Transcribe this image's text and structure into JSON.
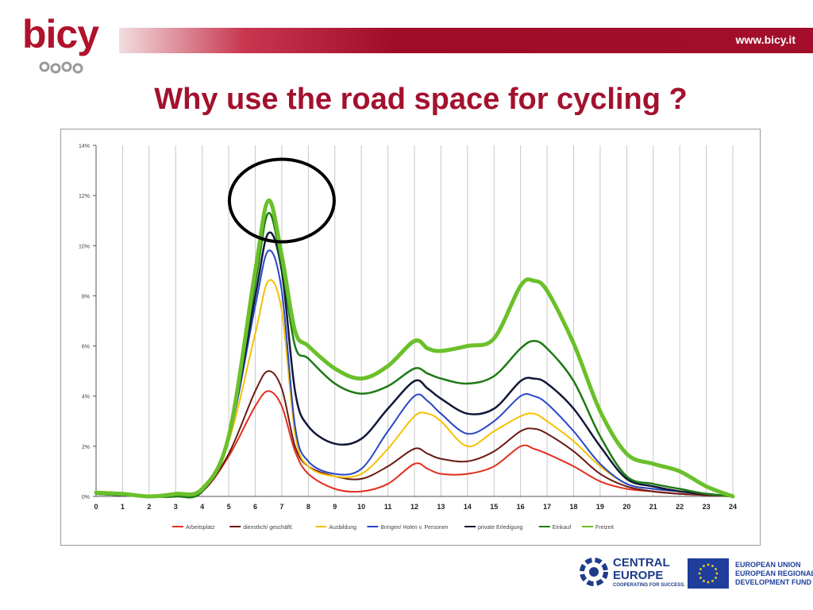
{
  "header": {
    "logo_text": "bicy",
    "url": "www.bicy.it",
    "title": "Why use the road space for cycling ?"
  },
  "colors": {
    "brand_red": "#a3112e",
    "banner_dark": "#9e0c26",
    "eu_blue": "#1f3e9c",
    "central_blue": "#1e3c8a"
  },
  "chart_data": {
    "type": "line",
    "title": "",
    "xlabel": "",
    "ylabel": "",
    "x": [
      0,
      1,
      2,
      3,
      4,
      5,
      6,
      6.5,
      7,
      7.5,
      8,
      9,
      10,
      11,
      12,
      12.5,
      13,
      14,
      15,
      16,
      16.5,
      17,
      18,
      19,
      20,
      21,
      22,
      23,
      24
    ],
    "xticks": [
      "0",
      "1",
      "2",
      "3",
      "4",
      "5",
      "6",
      "7",
      "8",
      "9",
      "10",
      "11",
      "12",
      "13",
      "14",
      "15",
      "16",
      "17",
      "18",
      "19",
      "20",
      "21",
      "22",
      "23",
      "24"
    ],
    "yticks": [
      "0%",
      "2%",
      "4%",
      "6%",
      "8%",
      "10%",
      "12%",
      "14%"
    ],
    "ylim": [
      0,
      14
    ],
    "xlim": [
      0,
      24
    ],
    "grid": "vertical",
    "legend_position": "bottom",
    "series": [
      {
        "name": "Arbeitsplatz",
        "color": "#e03020",
        "width": 2,
        "values": [
          0.1,
          0.05,
          0,
          0,
          0.2,
          1.6,
          3.6,
          4.2,
          3.6,
          1.8,
          0.9,
          0.3,
          0.2,
          0.5,
          1.3,
          1.1,
          0.9,
          0.9,
          1.2,
          2.0,
          1.9,
          1.7,
          1.2,
          0.6,
          0.3,
          0.2,
          0.1,
          0.05,
          0
        ]
      },
      {
        "name": "dienstlich/ geschäftl.",
        "color": "#6a1a12",
        "width": 2,
        "values": [
          0.1,
          0.05,
          0,
          0,
          0.2,
          1.7,
          4.2,
          5.0,
          4.3,
          2.0,
          1.2,
          0.8,
          0.7,
          1.2,
          1.9,
          1.7,
          1.5,
          1.4,
          1.8,
          2.6,
          2.7,
          2.5,
          1.8,
          0.9,
          0.4,
          0.2,
          0.1,
          0.05,
          0
        ]
      },
      {
        "name": "Ausbildung",
        "color": "#f5c000",
        "width": 2,
        "values": [
          0.1,
          0.05,
          0,
          0,
          0.2,
          2.2,
          6.5,
          8.6,
          7.4,
          2.5,
          1.2,
          0.8,
          0.9,
          1.9,
          3.2,
          3.3,
          3.0,
          2.0,
          2.6,
          3.2,
          3.3,
          3.0,
          2.2,
          1.2,
          0.5,
          0.3,
          0.2,
          0.1,
          0
        ]
      },
      {
        "name": "Bringen/ Holen v. Personen",
        "color": "#2846c8",
        "width": 2,
        "values": [
          0.1,
          0.05,
          0,
          0,
          0.2,
          2.3,
          7.6,
          9.8,
          8.2,
          2.8,
          1.4,
          0.9,
          1.1,
          2.6,
          4.0,
          3.8,
          3.3,
          2.5,
          3.0,
          4.0,
          4.0,
          3.7,
          2.6,
          1.3,
          0.5,
          0.3,
          0.2,
          0.1,
          0
        ]
      },
      {
        "name": "private Erledigung",
        "color": "#111838",
        "width": 2.5,
        "values": [
          0.1,
          0.05,
          0,
          0,
          0.2,
          2.4,
          8.0,
          10.5,
          9.0,
          4.2,
          2.8,
          2.1,
          2.3,
          3.5,
          4.6,
          4.3,
          3.9,
          3.3,
          3.5,
          4.6,
          4.7,
          4.5,
          3.5,
          2.0,
          0.7,
          0.4,
          0.2,
          0.1,
          0
        ]
      },
      {
        "name": "Einkauf",
        "color": "#1e7a14",
        "width": 2.5,
        "values": [
          0.1,
          0.05,
          0,
          0,
          0.2,
          2.4,
          8.5,
          11.3,
          9.2,
          6.0,
          5.5,
          4.5,
          4.1,
          4.4,
          5.1,
          4.9,
          4.7,
          4.5,
          4.8,
          5.9,
          6.2,
          5.9,
          4.6,
          2.4,
          0.8,
          0.5,
          0.3,
          0.1,
          0
        ]
      },
      {
        "name": "Freizeit",
        "color": "#6ac02a",
        "width": 5,
        "values": [
          0.15,
          0.1,
          0,
          0.1,
          0.3,
          2.4,
          9.0,
          11.8,
          9.6,
          6.6,
          6.0,
          5.1,
          4.7,
          5.2,
          6.2,
          5.9,
          5.8,
          6.0,
          6.3,
          8.4,
          8.6,
          8.2,
          6.1,
          3.4,
          1.7,
          1.3,
          1.0,
          0.4,
          0
        ]
      }
    ],
    "annotation": "circle around the 7 o'clock peak"
  },
  "footer": {
    "central_line1": "CENTRAL",
    "central_line2": "EUROPE",
    "central_tagline": "COOPERATING FOR SUCCESS.",
    "eu_line1": "EUROPEAN UNION",
    "eu_line2": "EUROPEAN REGIONAL",
    "eu_line3": "DEVELOPMENT FUND"
  }
}
